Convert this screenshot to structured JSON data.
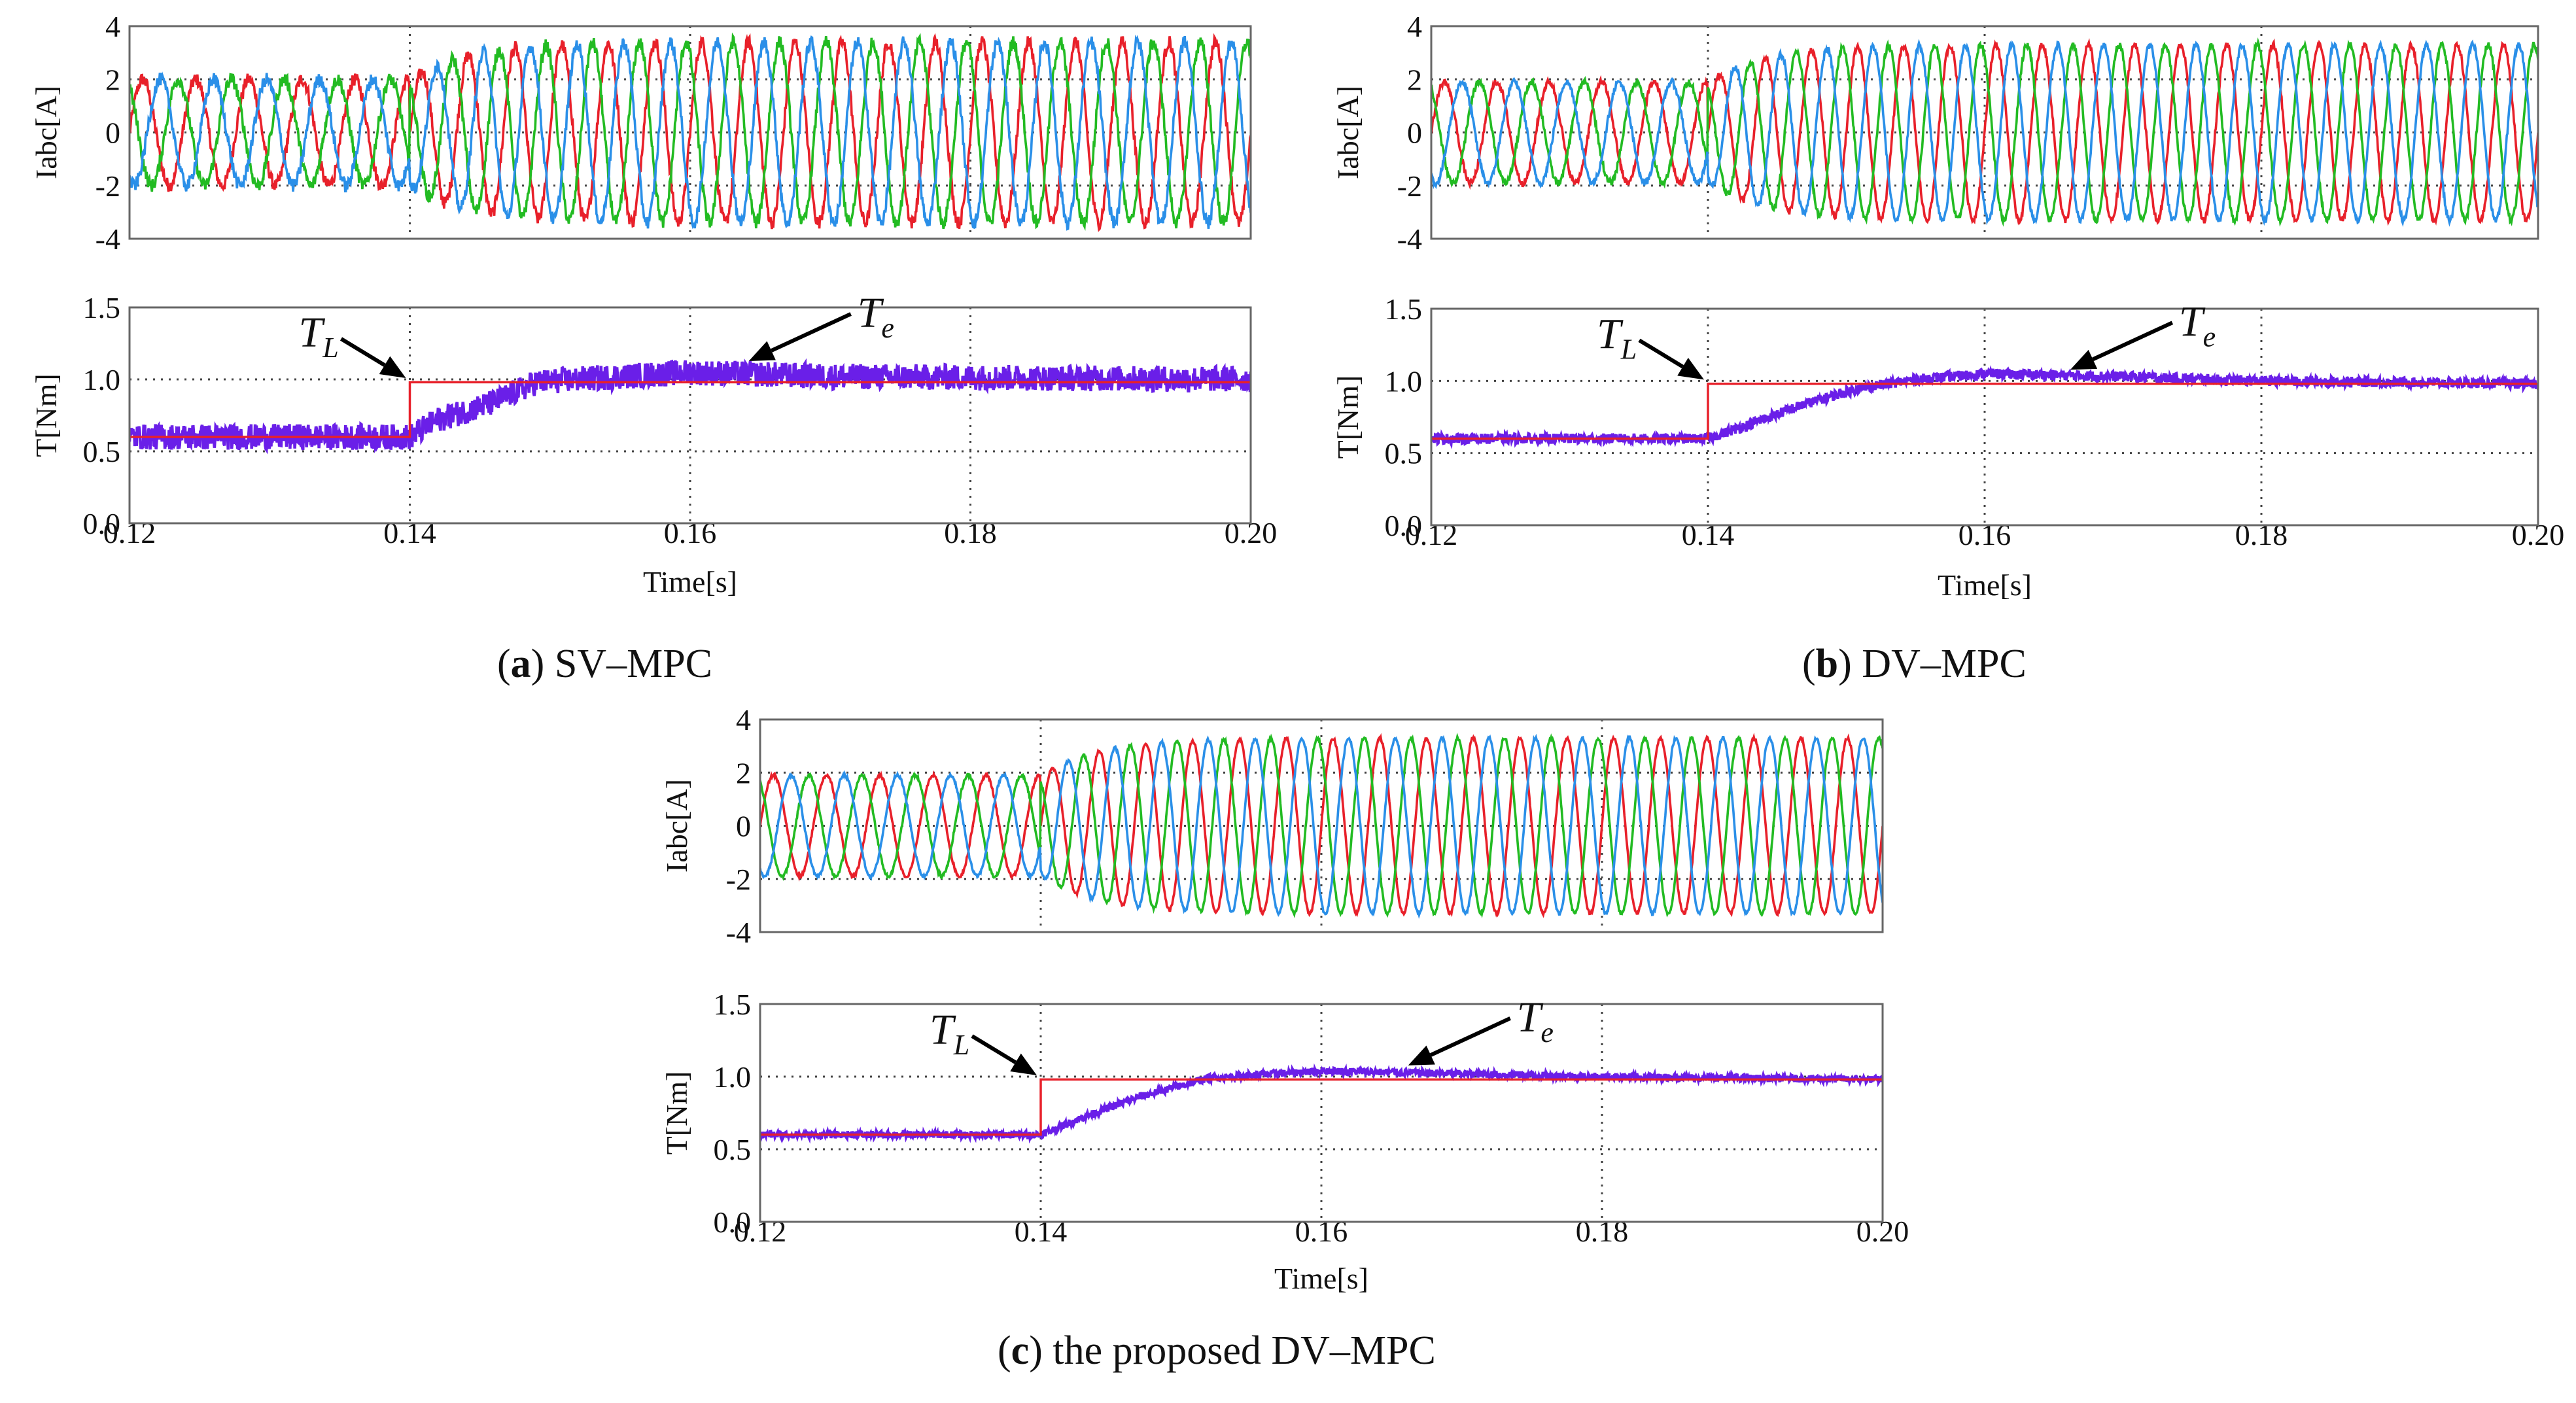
{
  "figure": {
    "panels": [
      {
        "letter": "a",
        "label": "SV–MPC"
      },
      {
        "letter": "b",
        "label": "DV–MPC"
      },
      {
        "letter": "c",
        "label": "the proposed DV–MPC"
      }
    ],
    "paren_open": "(",
    "paren_close": ")",
    "load_label": {
      "base": "T",
      "sub": "L"
    },
    "torque_label": {
      "base": "T",
      "sub": "e"
    }
  },
  "colors": {
    "phase_a": "#e8202a",
    "phase_b": "#22bb22",
    "phase_c": "#2a8fe8",
    "electromagnetic_torque": "#6a1fe8",
    "load_torque": "#e8202a",
    "grid": "#444444",
    "axis": "#666666"
  },
  "chart_data": [
    {
      "type": "line",
      "panel": "a",
      "title": "(a) SV–MPC",
      "subplots": [
        {
          "name": "current",
          "ylabel": "Iabc[A]",
          "xlim": [
            0.12,
            0.2
          ],
          "ylim": [
            -4,
            4
          ],
          "yticks": [
            "4",
            "2",
            "0",
            "-2",
            "-4"
          ],
          "series": [
            {
              "name": "Ia",
              "color": "#e8202a",
              "amplitude_before_A": 2.0,
              "amplitude_after_A": 3.4,
              "ripple_A": 0.25
            },
            {
              "name": "Ib",
              "color": "#22bb22",
              "amplitude_before_A": 2.0,
              "amplitude_after_A": 3.4,
              "ripple_A": 0.25
            },
            {
              "name": "Ic",
              "color": "#2a8fe8",
              "amplitude_before_A": 2.0,
              "amplitude_after_A": 3.4,
              "ripple_A": 0.25
            }
          ],
          "frequency_Hz": 300,
          "step_time_s": 0.14
        },
        {
          "name": "torque",
          "ylabel": "T[Nm]",
          "xlabel": "Time[s]",
          "xlim": [
            0.12,
            0.2
          ],
          "ylim": [
            0.0,
            1.5
          ],
          "xticks": [
            "0.12",
            "0.14",
            "0.16",
            "0.18",
            "0.20"
          ],
          "yticks": [
            "1.5",
            "1.0",
            "0.5",
            "0.0"
          ],
          "series": [
            {
              "name": "TL",
              "color": "#e8202a",
              "x": [
                0.12,
                0.14,
                0.14,
                0.2
              ],
              "y": [
                0.6,
                0.6,
                0.98,
                0.98
              ]
            },
            {
              "name": "Te",
              "color": "#6a1fe8",
              "x": [
                0.12,
                0.14,
                0.142,
                0.146,
                0.149,
                0.155,
                0.16,
                0.17,
                0.2
              ],
              "y": [
                0.6,
                0.6,
                0.72,
                0.84,
                0.98,
                1.02,
                1.05,
                1.02,
                1.0
              ],
              "ripple_Nm": 0.09
            }
          ],
          "annotations": [
            {
              "text": "TL",
              "x": 0.14,
              "y": 1.0
            },
            {
              "text": "Te",
              "x": 0.164,
              "y": 1.1
            }
          ]
        }
      ]
    },
    {
      "type": "line",
      "panel": "b",
      "title": "(b) DV–MPC",
      "subplots": [
        {
          "name": "current",
          "ylabel": "Iabc[A]",
          "xlim": [
            0.12,
            0.2
          ],
          "ylim": [
            -4,
            4
          ],
          "yticks": [
            "4",
            "2",
            "0",
            "-2",
            "-4"
          ],
          "series": [
            {
              "name": "Ia",
              "color": "#e8202a",
              "amplitude_before_A": 1.9,
              "amplitude_after_A": 3.3,
              "ripple_A": 0.12
            },
            {
              "name": "Ib",
              "color": "#22bb22",
              "amplitude_before_A": 1.9,
              "amplitude_after_A": 3.3,
              "ripple_A": 0.12
            },
            {
              "name": "Ic",
              "color": "#2a8fe8",
              "amplitude_before_A": 1.9,
              "amplitude_after_A": 3.3,
              "ripple_A": 0.12
            }
          ],
          "frequency_Hz": 300,
          "step_time_s": 0.14
        },
        {
          "name": "torque",
          "ylabel": "T[Nm]",
          "xlabel": "Time[s]",
          "xlim": [
            0.12,
            0.2
          ],
          "ylim": [
            0.0,
            1.5
          ],
          "xticks": [
            "0.12",
            "0.14",
            "0.16",
            "0.18",
            "0.20"
          ],
          "yticks": [
            "1.5",
            "1.0",
            "0.5",
            "0.0"
          ],
          "series": [
            {
              "name": "TL",
              "color": "#e8202a",
              "x": [
                0.12,
                0.14,
                0.14,
                0.2
              ],
              "y": [
                0.6,
                0.6,
                0.98,
                0.98
              ]
            },
            {
              "name": "Te",
              "color": "#6a1fe8",
              "x": [
                0.12,
                0.14,
                0.143,
                0.147,
                0.151,
                0.155,
                0.16,
                0.17,
                0.18,
                0.2
              ],
              "y": [
                0.6,
                0.6,
                0.7,
                0.84,
                0.95,
                1.01,
                1.05,
                1.03,
                1.0,
                0.98
              ],
              "ripple_Nm": 0.035
            }
          ],
          "annotations": [
            {
              "text": "TL",
              "x": 0.14,
              "y": 1.0
            },
            {
              "text": "Te",
              "x": 0.166,
              "y": 1.05
            }
          ]
        }
      ]
    },
    {
      "type": "line",
      "panel": "c",
      "title": "(c) the proposed DV–MPC",
      "subplots": [
        {
          "name": "current",
          "ylabel": "Iabc[A]",
          "xlim": [
            0.12,
            0.2
          ],
          "ylim": [
            -4,
            4
          ],
          "yticks": [
            "4",
            "2",
            "0",
            "-2",
            "-4"
          ],
          "series": [
            {
              "name": "Ia",
              "color": "#e8202a",
              "amplitude_before_A": 1.9,
              "amplitude_after_A": 3.3,
              "ripple_A": 0.06
            },
            {
              "name": "Ib",
              "color": "#22bb22",
              "amplitude_before_A": 1.9,
              "amplitude_after_A": 3.3,
              "ripple_A": 0.06
            },
            {
              "name": "Ic",
              "color": "#2a8fe8",
              "amplitude_before_A": 1.9,
              "amplitude_after_A": 3.3,
              "ripple_A": 0.06
            }
          ],
          "frequency_Hz": 300,
          "step_time_s": 0.14
        },
        {
          "name": "torque",
          "ylabel": "T[Nm]",
          "xlabel": "Time[s]",
          "xlim": [
            0.12,
            0.2
          ],
          "ylim": [
            0.0,
            1.5
          ],
          "xticks": [
            "0.12",
            "0.14",
            "0.16",
            "0.18",
            "0.20"
          ],
          "yticks": [
            "1.5",
            "1.0",
            "0.5",
            "0.0"
          ],
          "series": [
            {
              "name": "TL",
              "color": "#e8202a",
              "x": [
                0.12,
                0.14,
                0.14,
                0.2
              ],
              "y": [
                0.6,
                0.6,
                0.98,
                0.98
              ]
            },
            {
              "name": "Te",
              "color": "#6a1fe8",
              "x": [
                0.12,
                0.14,
                0.143,
                0.147,
                0.152,
                0.16,
                0.17,
                0.18,
                0.2
              ],
              "y": [
                0.6,
                0.6,
                0.72,
                0.86,
                0.99,
                1.04,
                1.02,
                1.0,
                0.98
              ],
              "ripple_Nm": 0.025
            }
          ],
          "annotations": [
            {
              "text": "TL",
              "x": 0.14,
              "y": 1.0
            },
            {
              "text": "Te",
              "x": 0.166,
              "y": 1.05
            }
          ]
        }
      ]
    }
  ]
}
